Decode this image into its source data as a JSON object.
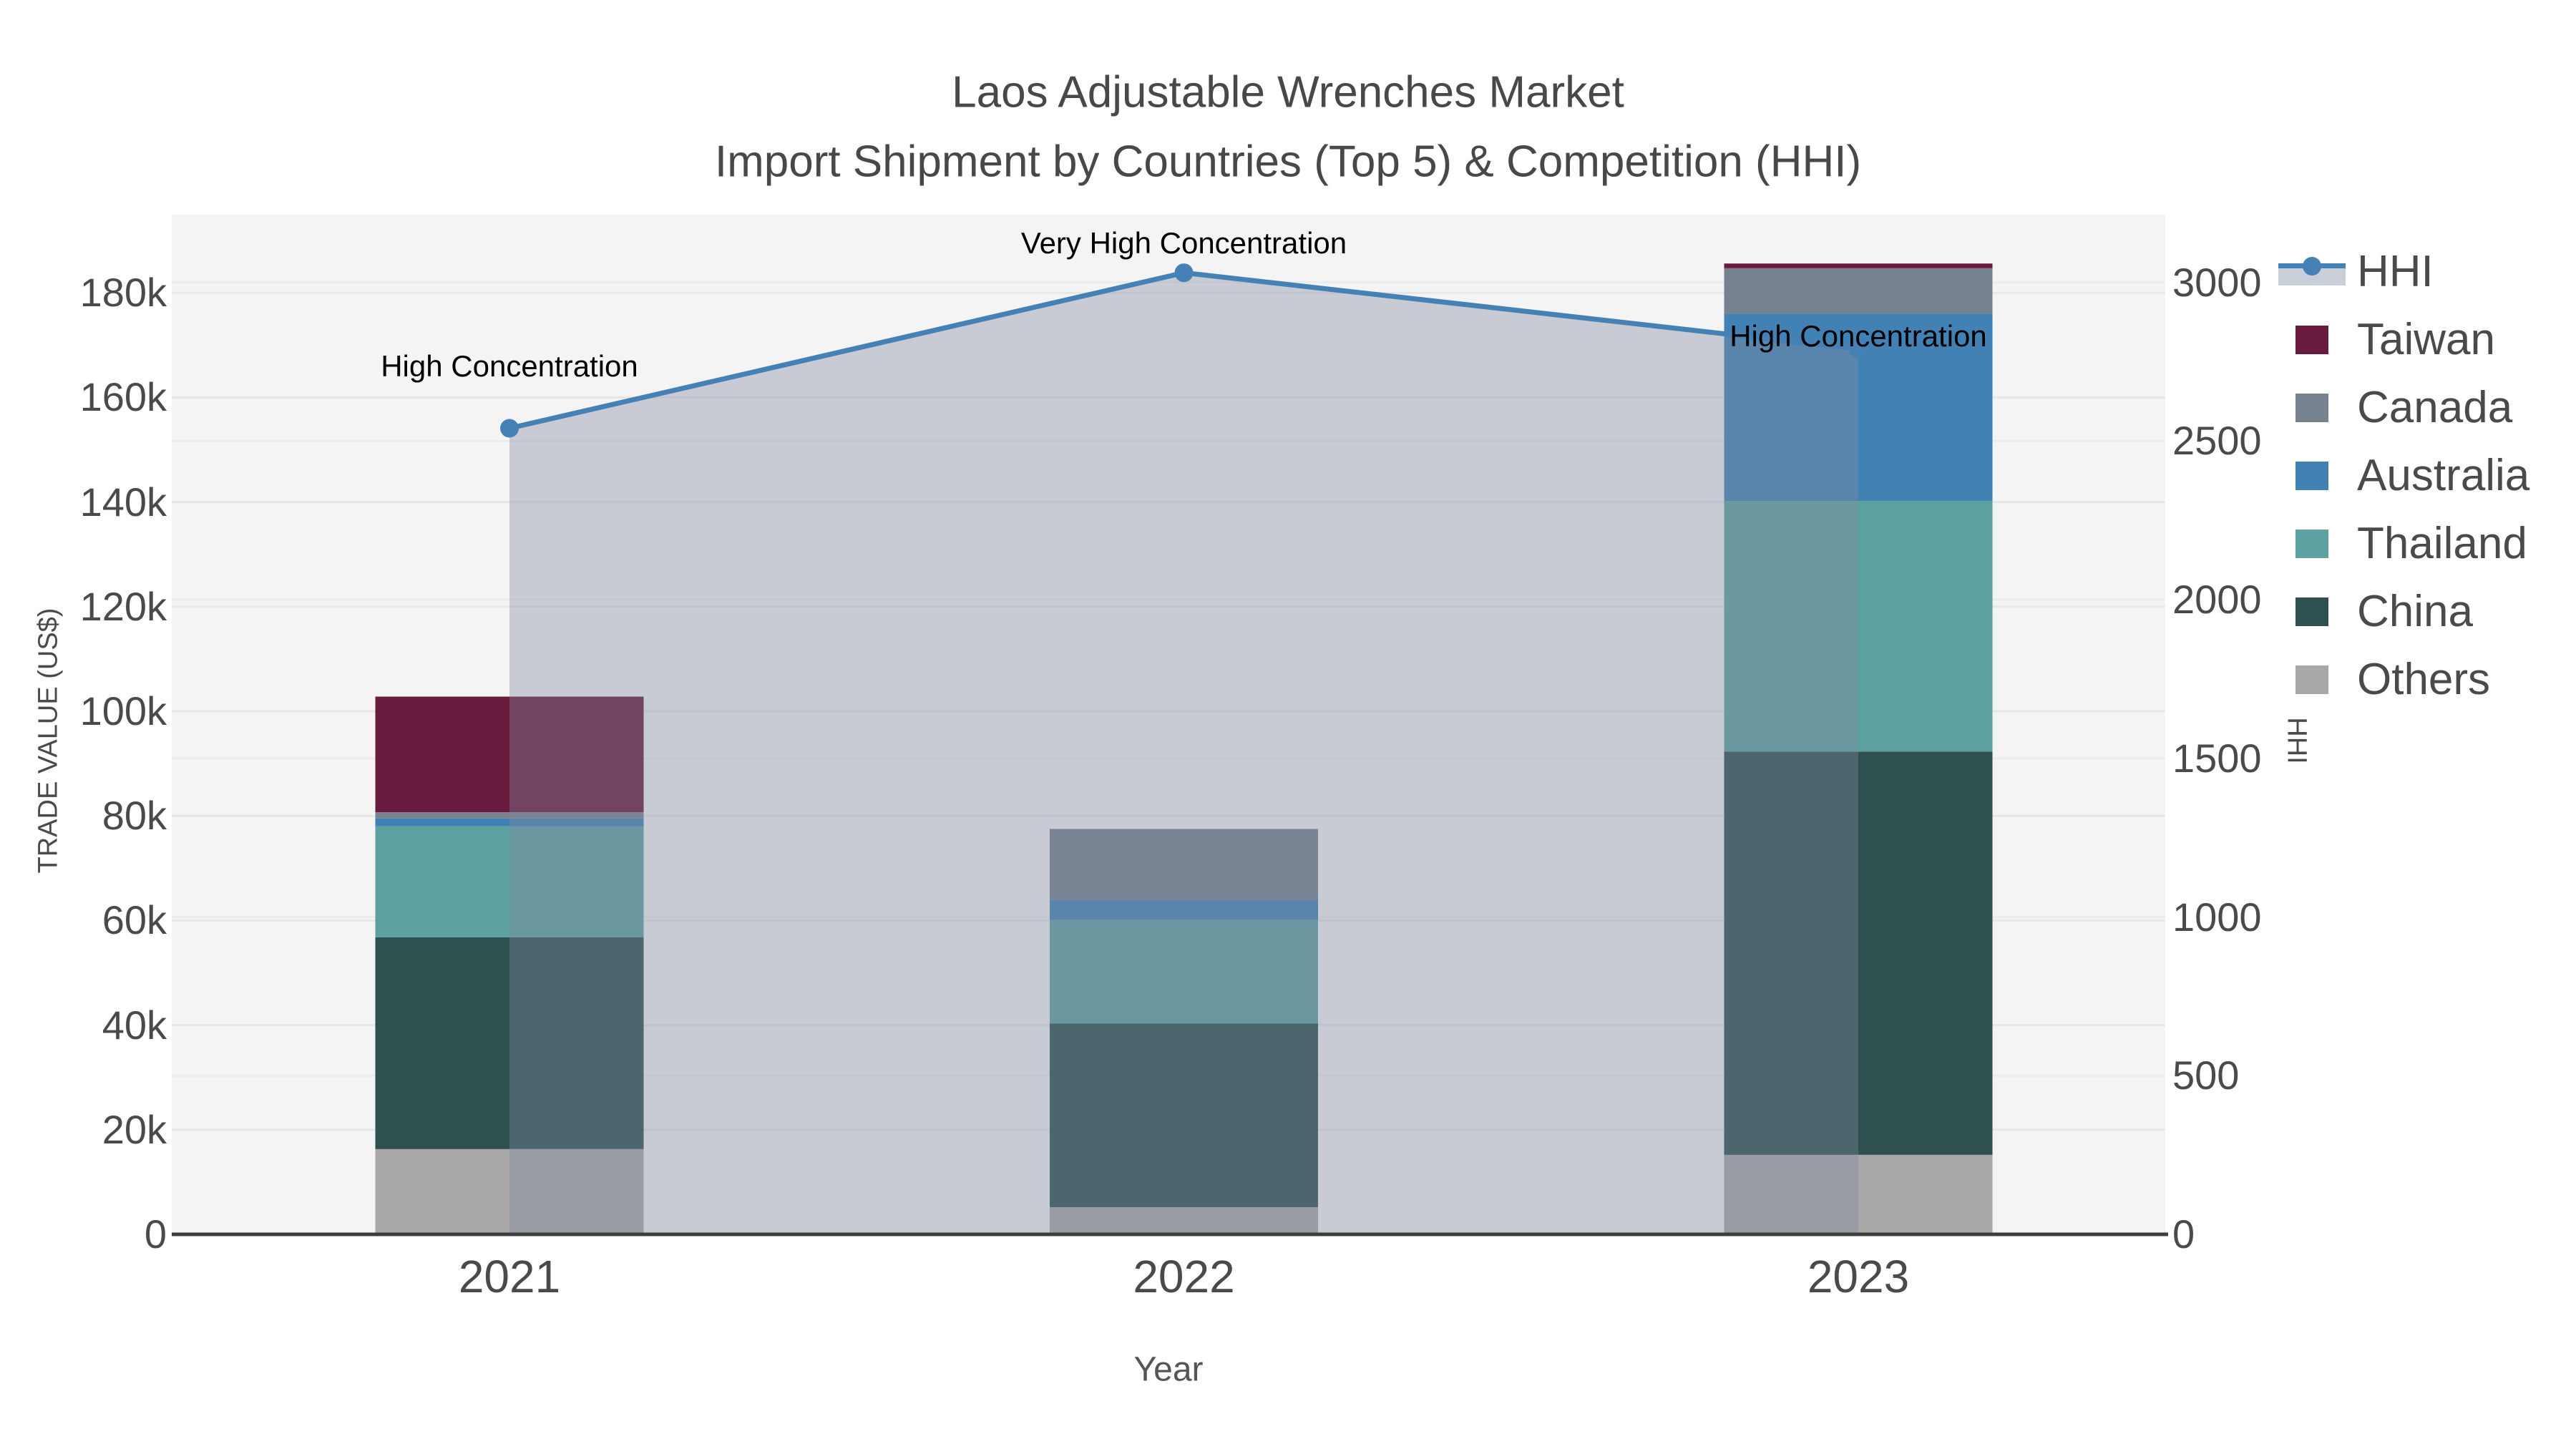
{
  "title": {
    "line1": "Laos Adjustable Wrenches Market",
    "line2": "Import Shipment by Countries (Top 5) & Competition (HHI)"
  },
  "axes": {
    "x_title": "Year",
    "y_left_title": "TRADE VALUE (US$)",
    "y_right_title": "HHI",
    "y_left_ticks": [
      "0",
      "20k",
      "40k",
      "60k",
      "80k",
      "100k",
      "120k",
      "140k",
      "160k",
      "180k"
    ],
    "y_right_ticks": [
      "0",
      "500",
      "1000",
      "1500",
      "2000",
      "2500",
      "3000"
    ]
  },
  "legend": [
    {
      "label": "HHI",
      "type": "line",
      "color": "#4581B4",
      "band_color": "#C9CFD8"
    },
    {
      "label": "Taiwan",
      "type": "swatch",
      "color": "#691B3D"
    },
    {
      "label": "Canada",
      "type": "swatch",
      "color": "#76828F"
    },
    {
      "label": "Australia",
      "type": "swatch",
      "color": "#4181B4"
    },
    {
      "label": "Thailand",
      "type": "swatch",
      "color": "#5CA0A0"
    },
    {
      "label": "China",
      "type": "swatch",
      "color": "#2E504E"
    },
    {
      "label": "Others",
      "type": "swatch",
      "color": "#A9A8A7"
    }
  ],
  "chart_data": {
    "type": "bar+line",
    "title": "Laos Adjustable Wrenches Market — Import Shipment by Countries (Top 5) & Competition (HHI)",
    "categories": [
      "2021",
      "2022",
      "2023"
    ],
    "stack_order_bottom_up": [
      "Others",
      "China",
      "Thailand",
      "Australia",
      "Canada",
      "Taiwan"
    ],
    "series": [
      {
        "name": "Others",
        "color": "#A9A8A7",
        "values": [
          16300,
          5200,
          15200
        ]
      },
      {
        "name": "China",
        "color": "#2E504E",
        "values": [
          40500,
          35100,
          77100
        ]
      },
      {
        "name": "Thailand",
        "color": "#5CA0A0",
        "values": [
          21200,
          19800,
          47900
        ]
      },
      {
        "name": "Australia",
        "color": "#4181B4",
        "values": [
          1500,
          3900,
          35800
        ]
      },
      {
        "name": "Canada",
        "color": "#76828F",
        "values": [
          1200,
          13500,
          8700
        ]
      },
      {
        "name": "Taiwan",
        "color": "#691B3D",
        "values": [
          22100,
          0,
          900
        ]
      }
    ],
    "bar_totals": [
      102800,
      77500,
      185600
    ],
    "line_series": {
      "name": "HHI",
      "color": "#4581B4",
      "area_fill": "rgba(128,138,160,0.38)",
      "values": [
        2540,
        3030,
        2790
      ]
    },
    "annotations": [
      {
        "category": "2021",
        "text": "High Concentration"
      },
      {
        "category": "2022",
        "text": "Very High Concentration"
      },
      {
        "category": "2023",
        "text": "High Concentration"
      }
    ],
    "xlabel": "Year",
    "ylabel_left": "TRADE VALUE (US$)",
    "ylabel_right": "HHI",
    "ylim_left": [
      0,
      195000
    ],
    "ylim_right": [
      0,
      3213
    ],
    "grid": true,
    "legend_position": "right",
    "plot_bg": "#F4F4F4",
    "grid_color": "#E7E7E7"
  }
}
